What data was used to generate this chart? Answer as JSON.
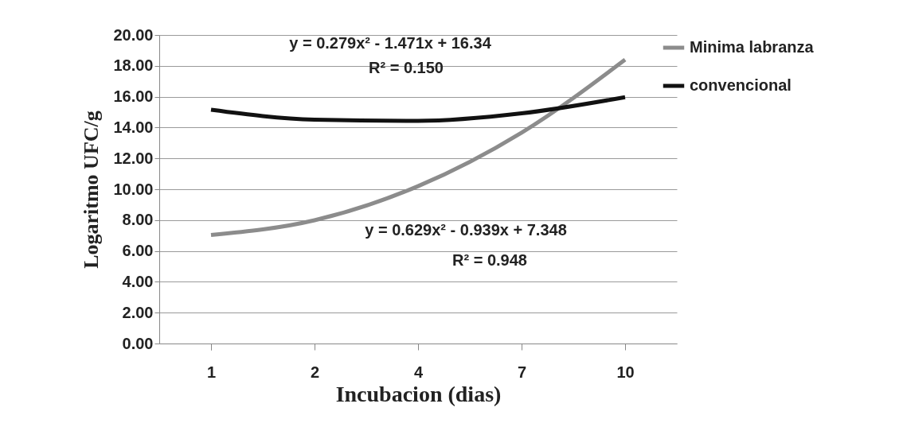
{
  "chart_data": {
    "type": "line",
    "xlabel": "Incubacion (dias)",
    "ylabel": "Logaritmo UFC/g",
    "categories": [
      "1",
      "2",
      "4",
      "7",
      "10"
    ],
    "series": [
      {
        "name": "Minima labranza",
        "color": "#8c8c8c",
        "values": [
          7.04,
          7.99,
          10.2,
          13.67,
          18.4
        ]
      },
      {
        "name": "convencional",
        "color": "#111111",
        "values": [
          15.15,
          14.51,
          14.43,
          14.92,
          15.97
        ]
      }
    ],
    "ylim": [
      0,
      20
    ],
    "yticks": [
      {
        "value": 0,
        "label": "0.00"
      },
      {
        "value": 2,
        "label": "2.00"
      },
      {
        "value": 4,
        "label": "4.00"
      },
      {
        "value": 6,
        "label": "6.00"
      },
      {
        "value": 8,
        "label": "8.00"
      },
      {
        "value": 10,
        "label": "10.00"
      },
      {
        "value": 12,
        "label": "12.00"
      },
      {
        "value": 14,
        "label": "14.00"
      },
      {
        "value": 16,
        "label": "16.00"
      },
      {
        "value": 18,
        "label": "18.00"
      },
      {
        "value": 20,
        "label": "20.00"
      }
    ],
    "annotations": [
      "y = 0.279x² - 1.471x + 16.34",
      "R² = 0.150",
      "y = 0.629x² - 0.939x + 7.348",
      "R² = 0.948"
    ],
    "grid": "y",
    "legend": "right",
    "marker": "none",
    "line_style": "solid"
  }
}
